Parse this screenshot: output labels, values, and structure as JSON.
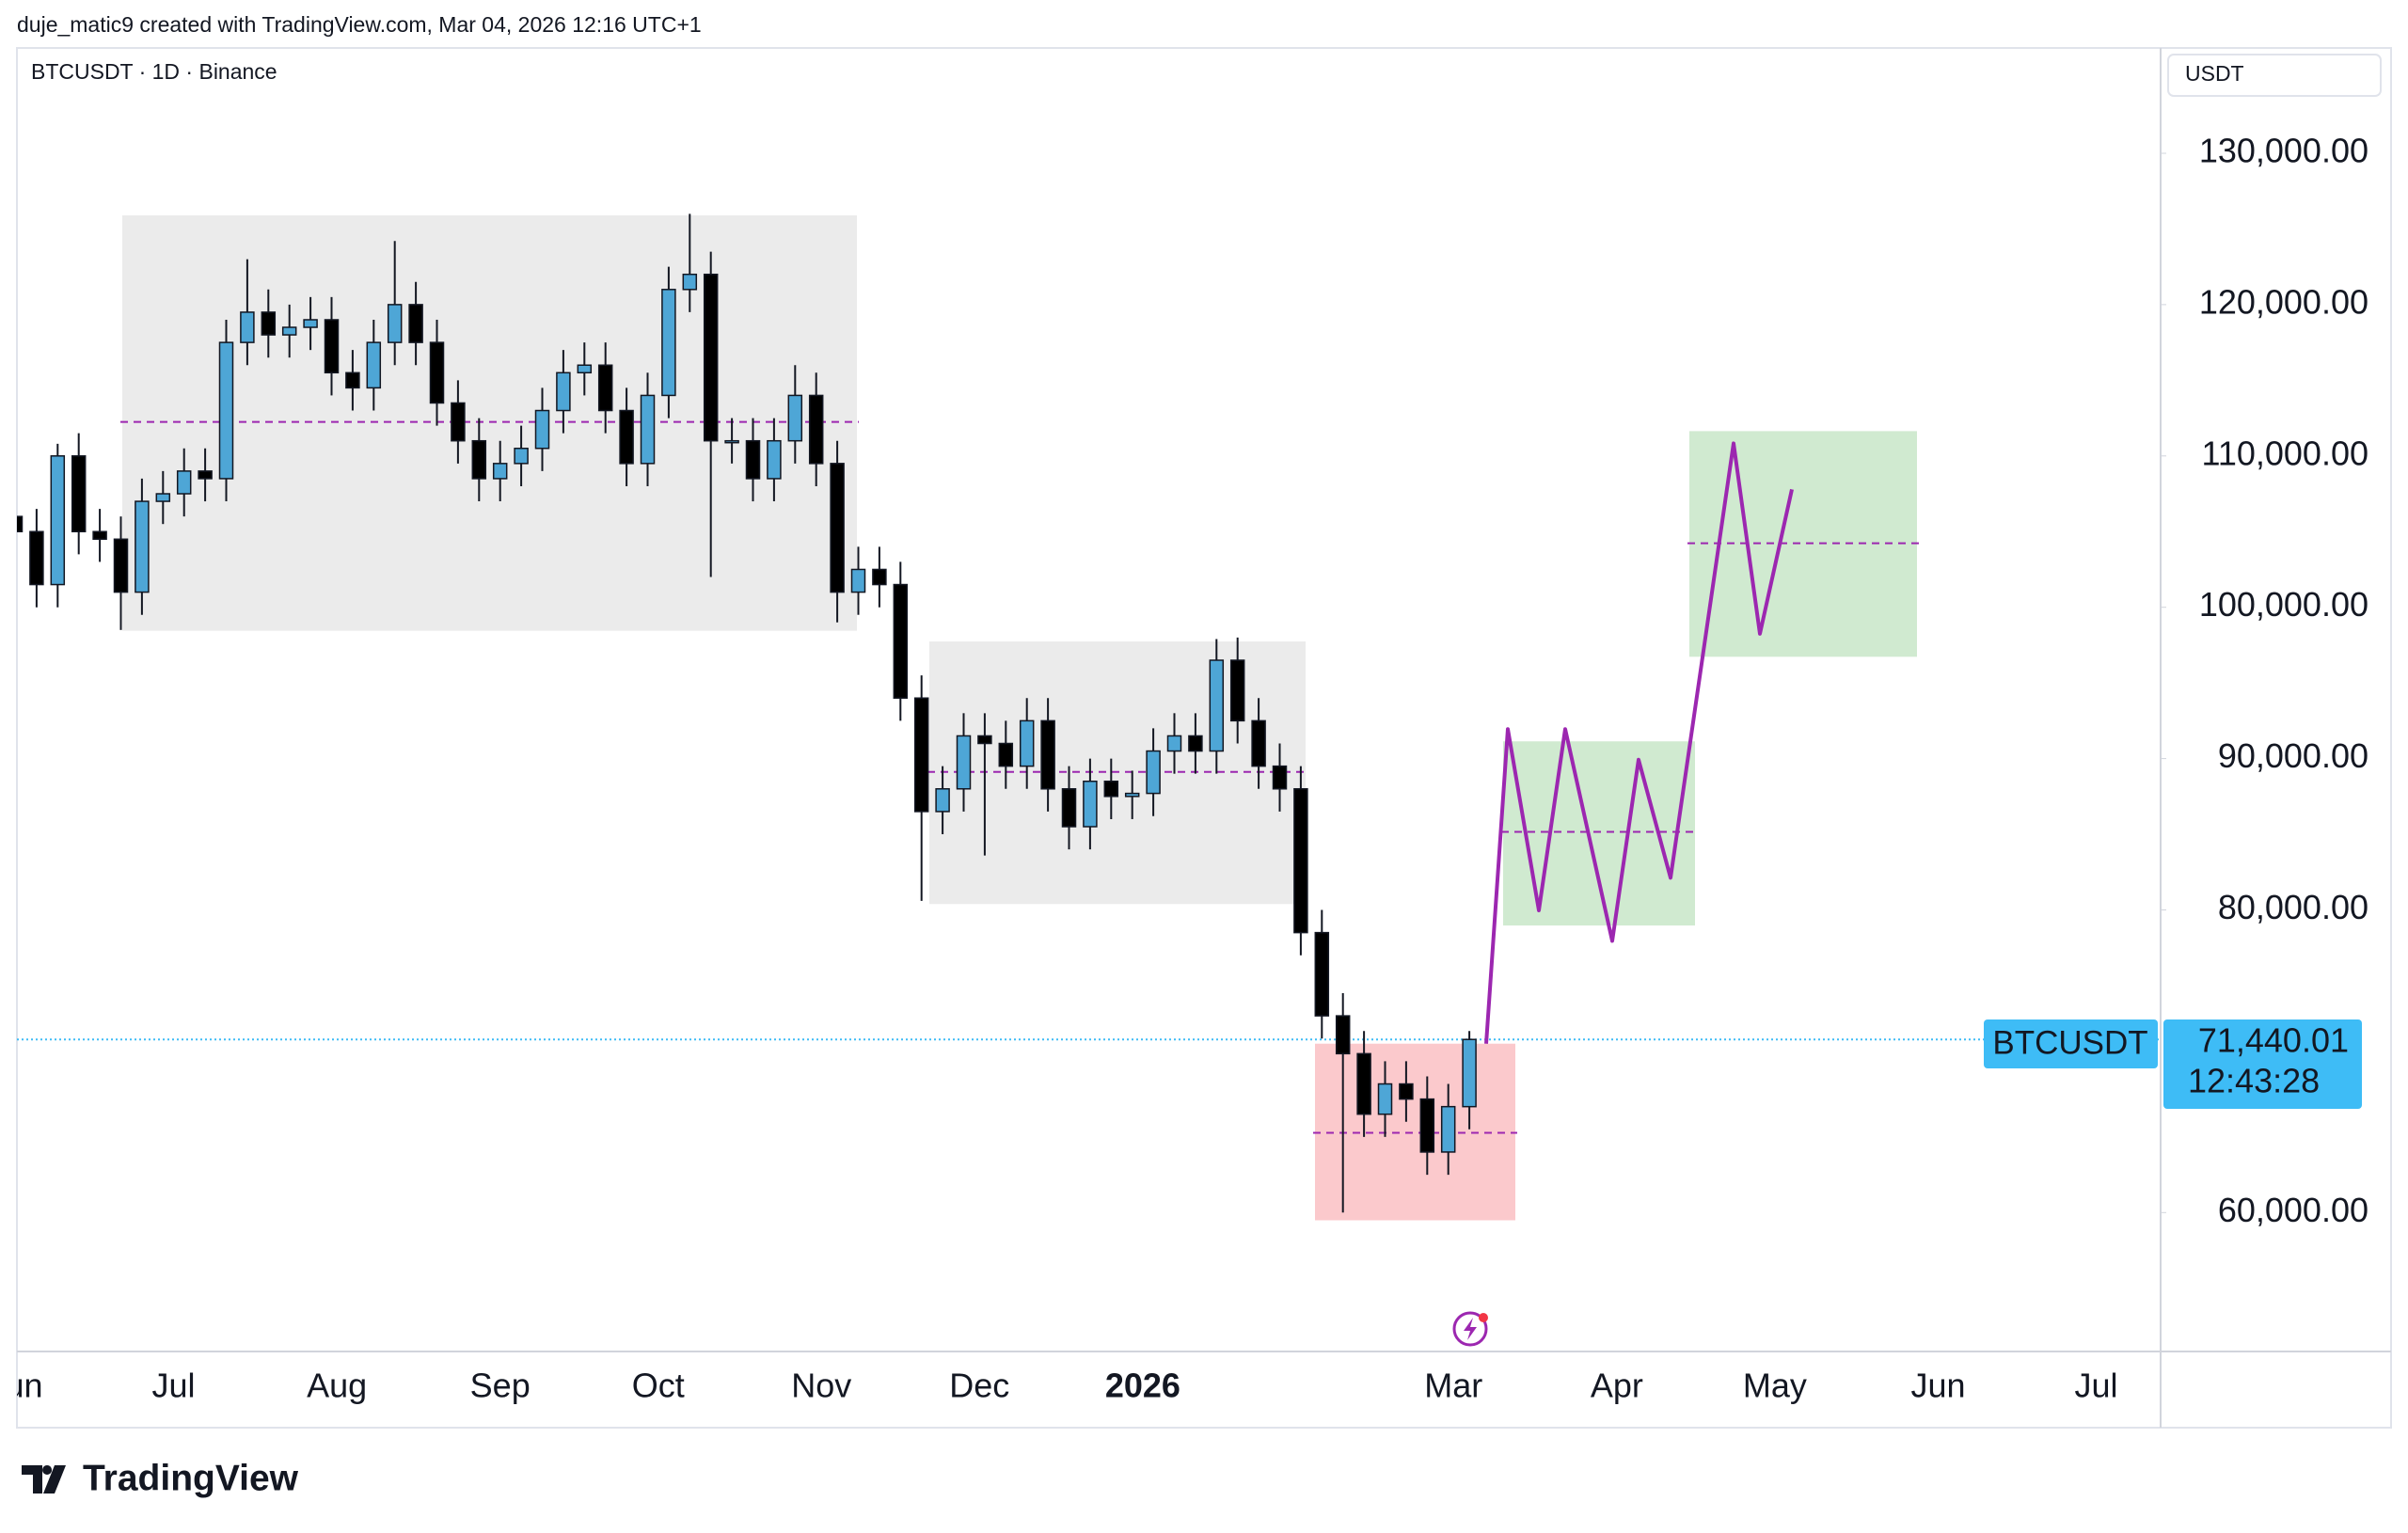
{
  "header": "duje_matic9 created with TradingView.com, Mar 04, 2026 12:16 UTC+1",
  "chart_data": {
    "type": "candlestick",
    "title": "BTCUSDT · 1D · Binance",
    "y_axis_label": "USDT",
    "open": [
      106000,
      105000,
      101500,
      110000,
      105000,
      104500,
      101000,
      107000,
      107500,
      109000,
      108500,
      117500,
      119500,
      118000,
      118500,
      119000,
      115500,
      114500,
      117500,
      120000,
      117500,
      113500,
      111000,
      108500,
      109500,
      110500,
      113000,
      115500,
      116000,
      113000,
      109500,
      114000,
      121000,
      122000,
      111000,
      111000,
      108500,
      111000,
      114000,
      109500,
      101000,
      102500,
      101500,
      94000,
      86500,
      88000,
      91500,
      91000,
      89500,
      92500,
      88000,
      85500,
      88500,
      87500,
      87700,
      90500,
      91500,
      90500,
      96500,
      92500,
      89500,
      88000,
      78500,
      73000,
      70500,
      66500,
      68500,
      67500,
      64000,
      67000
    ],
    "high": [
      107500,
      106500,
      110800,
      111500,
      106500,
      106000,
      108500,
      109000,
      110500,
      110500,
      119000,
      123000,
      121000,
      120000,
      120500,
      120500,
      117000,
      119000,
      124200,
      121500,
      119000,
      115000,
      112500,
      111000,
      112000,
      114500,
      117000,
      117500,
      117500,
      114500,
      115500,
      122500,
      126000,
      123500,
      112500,
      112500,
      112500,
      116000,
      115500,
      111000,
      104000,
      104000,
      103000,
      95500,
      89500,
      93000,
      93000,
      92500,
      94000,
      94000,
      89500,
      90000,
      90000,
      89200,
      92000,
      93000,
      93000,
      97900,
      98000,
      94000,
      91000,
      89500,
      80000,
      74500,
      72000,
      70000,
      70000,
      69000,
      68500,
      72000
    ],
    "low": [
      103500,
      100000,
      100000,
      103500,
      103000,
      98500,
      99500,
      105500,
      106000,
      107000,
      107000,
      116000,
      116500,
      116500,
      117000,
      114000,
      113000,
      113000,
      116000,
      116000,
      112000,
      109500,
      107000,
      107000,
      108000,
      109000,
      111500,
      114000,
      111500,
      108000,
      108000,
      112500,
      119500,
      102000,
      109500,
      107000,
      107000,
      109500,
      108000,
      99000,
      99500,
      100000,
      92500,
      80600,
      85000,
      86500,
      83600,
      88000,
      88000,
      86500,
      84000,
      84000,
      86000,
      86000,
      86200,
      89000,
      89000,
      89000,
      91000,
      88000,
      86500,
      77000,
      71500,
      60000,
      65000,
      65000,
      66000,
      62500,
      62500,
      65500
    ],
    "close": [
      105000,
      101500,
      110000,
      105000,
      104500,
      101000,
      107000,
      107500,
      109000,
      108500,
      117500,
      119500,
      118000,
      118500,
      119000,
      115500,
      114500,
      117500,
      120000,
      117500,
      113500,
      111000,
      108500,
      109500,
      110500,
      113000,
      115500,
      116000,
      113000,
      109500,
      114000,
      121000,
      122000,
      111000,
      111000,
      108500,
      111000,
      114000,
      109500,
      101000,
      102500,
      101500,
      94000,
      86500,
      88000,
      91500,
      91000,
      89500,
      92500,
      88000,
      85500,
      88500,
      87500,
      87700,
      90500,
      91500,
      90500,
      96500,
      92500,
      89500,
      88000,
      78500,
      73000,
      70500,
      66500,
      68500,
      67500,
      64000,
      67000,
      71440.01
    ],
    "up_color": "#4ea6d6",
    "down_color": "#000000",
    "ylim": [
      50820,
      136960
    ],
    "yticks": [
      {
        "value": 60000,
        "label": "60,000.00"
      },
      {
        "value": 80000,
        "label": "80,000.00"
      },
      {
        "value": 90000,
        "label": "90,000.00"
      },
      {
        "value": 100000,
        "label": "100,000.00"
      },
      {
        "value": 110000,
        "label": "110,000.00"
      },
      {
        "value": 120000,
        "label": "120,000.00"
      },
      {
        "value": 130000,
        "label": "130,000.00"
      }
    ],
    "xticks": [
      "Jun",
      "Jul",
      "Aug",
      "Sep",
      "Oct",
      "Nov",
      "Dec",
      "2026",
      "Mar",
      "Apr",
      "May",
      "Jun",
      "Jul"
    ],
    "last_price": {
      "value": 71440.01,
      "label": "71,440.01",
      "symbol": "BTCUSDT",
      "countdown": "12:43:28",
      "color": "#3ebcf6"
    },
    "zones": [
      {
        "top": 125900,
        "bottom": 98450,
        "mid": 112250,
        "color": "#ebebeb"
      },
      {
        "top": 97740,
        "bottom": 80390,
        "mid": 89120,
        "color": "#ebebeb"
      },
      {
        "top": 71160,
        "bottom": 59490,
        "mid": 65270,
        "color": "#fbc9cc"
      },
      {
        "top": 91140,
        "bottom": 78970,
        "mid": 85160,
        "color": "#d0ead0"
      },
      {
        "top": 111640,
        "bottom": 96730,
        "mid": 104230,
        "color": "#d0ead0"
      }
    ],
    "zone_mid_color": "#9c27b0",
    "projection": {
      "color": "#9c27b0",
      "values": [
        71160,
        91950,
        79970,
        91950,
        77950,
        89930,
        82120,
        110830,
        98250,
        107790
      ]
    }
  },
  "footer": "TradingView"
}
